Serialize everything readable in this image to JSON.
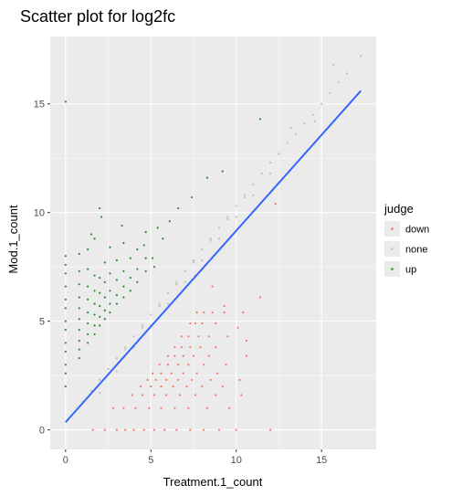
{
  "chart_data": {
    "type": "scatter",
    "title": "Scatter plot for log2fc",
    "xlabel": "Treatment.1_count",
    "ylabel": "Mod.1_count",
    "xlim": [
      -0.9,
      18.2
    ],
    "ylim": [
      -0.9,
      18.1
    ],
    "x_ticks": [
      0,
      5,
      10,
      15
    ],
    "y_ticks": [
      0,
      5,
      10,
      15
    ],
    "grid": true,
    "legend": {
      "title": "judge",
      "position": "right",
      "entries": [
        {
          "label": "down",
          "color": "#f8766d"
        },
        {
          "label": "none",
          "color": "#bebebe"
        },
        {
          "label": "up",
          "color": "#2e8b2e"
        }
      ]
    },
    "fit_line": {
      "color": "#3366ff",
      "x": [
        0.0,
        17.3
      ],
      "y": [
        0.35,
        15.6
      ]
    },
    "series": [
      {
        "name": "down",
        "color": "#f8766d",
        "x": [
          1.6,
          2.3,
          3.0,
          3.5,
          4.0,
          4.6,
          5.2,
          5.8,
          6.5,
          7.3,
          8.1,
          9.0,
          10.0,
          12.0,
          2.8,
          3.4,
          4.1,
          4.9,
          5.6,
          6.4,
          7.2,
          8.3,
          9.6,
          3.9,
          4.5,
          5.2,
          5.9,
          6.7,
          7.6,
          8.8,
          10.3,
          4.4,
          5.0,
          5.6,
          6.3,
          7.1,
          8.0,
          9.2,
          4.8,
          5.3,
          5.9,
          6.6,
          7.4,
          8.5,
          10.2,
          5.1,
          5.6,
          6.2,
          6.9,
          7.7,
          8.9,
          5.5,
          6.0,
          6.6,
          7.2,
          8.1,
          9.4,
          6.0,
          6.4,
          6.9,
          7.5,
          8.4,
          10.6,
          6.4,
          6.8,
          7.3,
          7.9,
          8.8,
          6.8,
          7.2,
          7.8,
          8.4,
          9.5,
          7.3,
          7.6,
          8.0,
          8.8,
          7.7,
          8.1,
          8.6,
          9.3,
          10.4,
          10.6,
          9.3,
          12.3,
          11.4,
          8.6,
          10.1,
          7.6
        ],
        "y": [
          0.0,
          0.0,
          0.0,
          0.0,
          0.0,
          0.0,
          0.0,
          0.0,
          0.0,
          0.0,
          0.0,
          0.0,
          0.0,
          0.0,
          1.0,
          1.0,
          1.0,
          1.0,
          1.0,
          1.0,
          1.0,
          1.0,
          1.0,
          1.6,
          1.6,
          1.6,
          1.6,
          1.6,
          1.6,
          1.6,
          1.6,
          2.0,
          2.0,
          2.0,
          2.0,
          2.0,
          2.0,
          2.0,
          2.3,
          2.3,
          2.3,
          2.3,
          2.3,
          2.3,
          2.3,
          2.6,
          2.6,
          2.6,
          2.6,
          2.6,
          2.6,
          3.0,
          3.0,
          3.0,
          3.0,
          3.0,
          3.0,
          3.4,
          3.4,
          3.4,
          3.4,
          3.4,
          3.4,
          3.8,
          3.8,
          3.8,
          3.8,
          3.8,
          4.3,
          4.3,
          4.3,
          4.3,
          4.3,
          4.9,
          4.9,
          4.9,
          4.9,
          5.4,
          5.4,
          5.4,
          5.4,
          5.4,
          4.1,
          5.7,
          10.4,
          6.1,
          6.6,
          4.7,
          7.1
        ]
      },
      {
        "name": "none",
        "color": "#bebebe",
        "x": [
          1.0,
          1.5,
          2.0,
          2.5,
          3.0,
          3.5,
          4.0,
          4.5,
          5.0,
          5.5,
          6.0,
          6.5,
          7.0,
          7.5,
          8.0,
          8.5,
          9.0,
          9.5,
          10.0,
          10.5,
          11.0,
          11.5,
          12.0,
          12.5,
          13.0,
          13.5,
          14.0,
          14.5,
          15.0,
          15.5,
          16.0,
          16.5,
          17.3,
          2.0,
          3.0,
          4.0,
          5.0,
          6.0,
          7.0,
          8.0,
          9.0,
          10.0,
          11.0,
          12.0,
          3.5,
          4.5,
          5.5,
          6.5,
          7.5,
          8.5,
          9.5,
          10.5,
          13.2,
          14.6,
          15.7
        ],
        "y": [
          1.3,
          1.8,
          2.3,
          2.8,
          3.3,
          3.8,
          4.3,
          4.8,
          5.3,
          5.8,
          6.3,
          6.8,
          7.3,
          7.8,
          8.3,
          8.8,
          9.3,
          9.8,
          10.3,
          10.8,
          11.3,
          11.8,
          12.3,
          12.7,
          13.2,
          13.6,
          14.1,
          14.5,
          15.0,
          15.5,
          16.0,
          16.4,
          17.2,
          1.7,
          2.7,
          3.8,
          4.8,
          5.8,
          6.8,
          7.8,
          8.8,
          9.8,
          10.8,
          11.8,
          3.7,
          4.7,
          5.7,
          6.7,
          7.7,
          8.7,
          9.7,
          10.7,
          13.9,
          14.2,
          16.8
        ]
      },
      {
        "name": "up",
        "color": "#2e8b2e",
        "x": [
          0.0,
          0.0,
          0.0,
          0.0,
          0.0,
          0.0,
          0.0,
          0.0,
          0.0,
          0.0,
          0.0,
          0.0,
          0.0,
          0.0,
          0.8,
          0.8,
          0.8,
          0.8,
          0.8,
          0.8,
          0.8,
          0.8,
          0.8,
          0.8,
          1.3,
          1.3,
          1.3,
          1.3,
          1.3,
          1.3,
          1.3,
          1.3,
          1.7,
          1.7,
          1.7,
          1.7,
          1.7,
          1.7,
          1.7,
          2.0,
          2.0,
          2.0,
          2.0,
          2.0,
          2.0,
          2.3,
          2.3,
          2.3,
          2.3,
          2.3,
          2.6,
          2.6,
          2.6,
          2.6,
          2.6,
          3.0,
          3.0,
          3.0,
          3.0,
          3.4,
          3.4,
          3.4,
          3.4,
          3.8,
          3.8,
          3.8,
          4.2,
          4.2,
          4.2,
          4.7,
          4.7,
          4.7,
          5.2,
          5.4,
          5.7,
          6.1,
          6.6,
          7.4,
          8.3,
          9.2,
          11.4,
          2.1,
          3.3,
          4.6,
          1.5,
          5.1
        ],
        "y": [
          2.0,
          2.6,
          3.0,
          3.6,
          4.0,
          4.6,
          5.0,
          5.6,
          6.0,
          6.6,
          7.2,
          7.6,
          8.0,
          15.1,
          3.3,
          3.7,
          4.1,
          4.6,
          5.1,
          5.6,
          6.1,
          6.7,
          7.3,
          8.1,
          4.0,
          4.4,
          4.9,
          5.4,
          6.0,
          6.6,
          7.4,
          8.3,
          4.4,
          4.8,
          5.3,
          5.8,
          6.4,
          7.1,
          8.8,
          4.8,
          5.2,
          5.7,
          6.3,
          7.0,
          10.2,
          5.1,
          5.5,
          6.1,
          6.8,
          7.7,
          5.4,
          5.8,
          6.4,
          7.2,
          8.4,
          5.8,
          6.2,
          6.9,
          7.8,
          6.1,
          6.6,
          7.3,
          8.6,
          6.4,
          7.0,
          7.9,
          6.8,
          7.4,
          8.3,
          7.3,
          7.9,
          9.1,
          7.5,
          9.3,
          8.8,
          9.6,
          10.2,
          10.7,
          11.6,
          11.9,
          14.3,
          9.8,
          9.4,
          8.5,
          9.0,
          7.9
        ]
      }
    ]
  }
}
